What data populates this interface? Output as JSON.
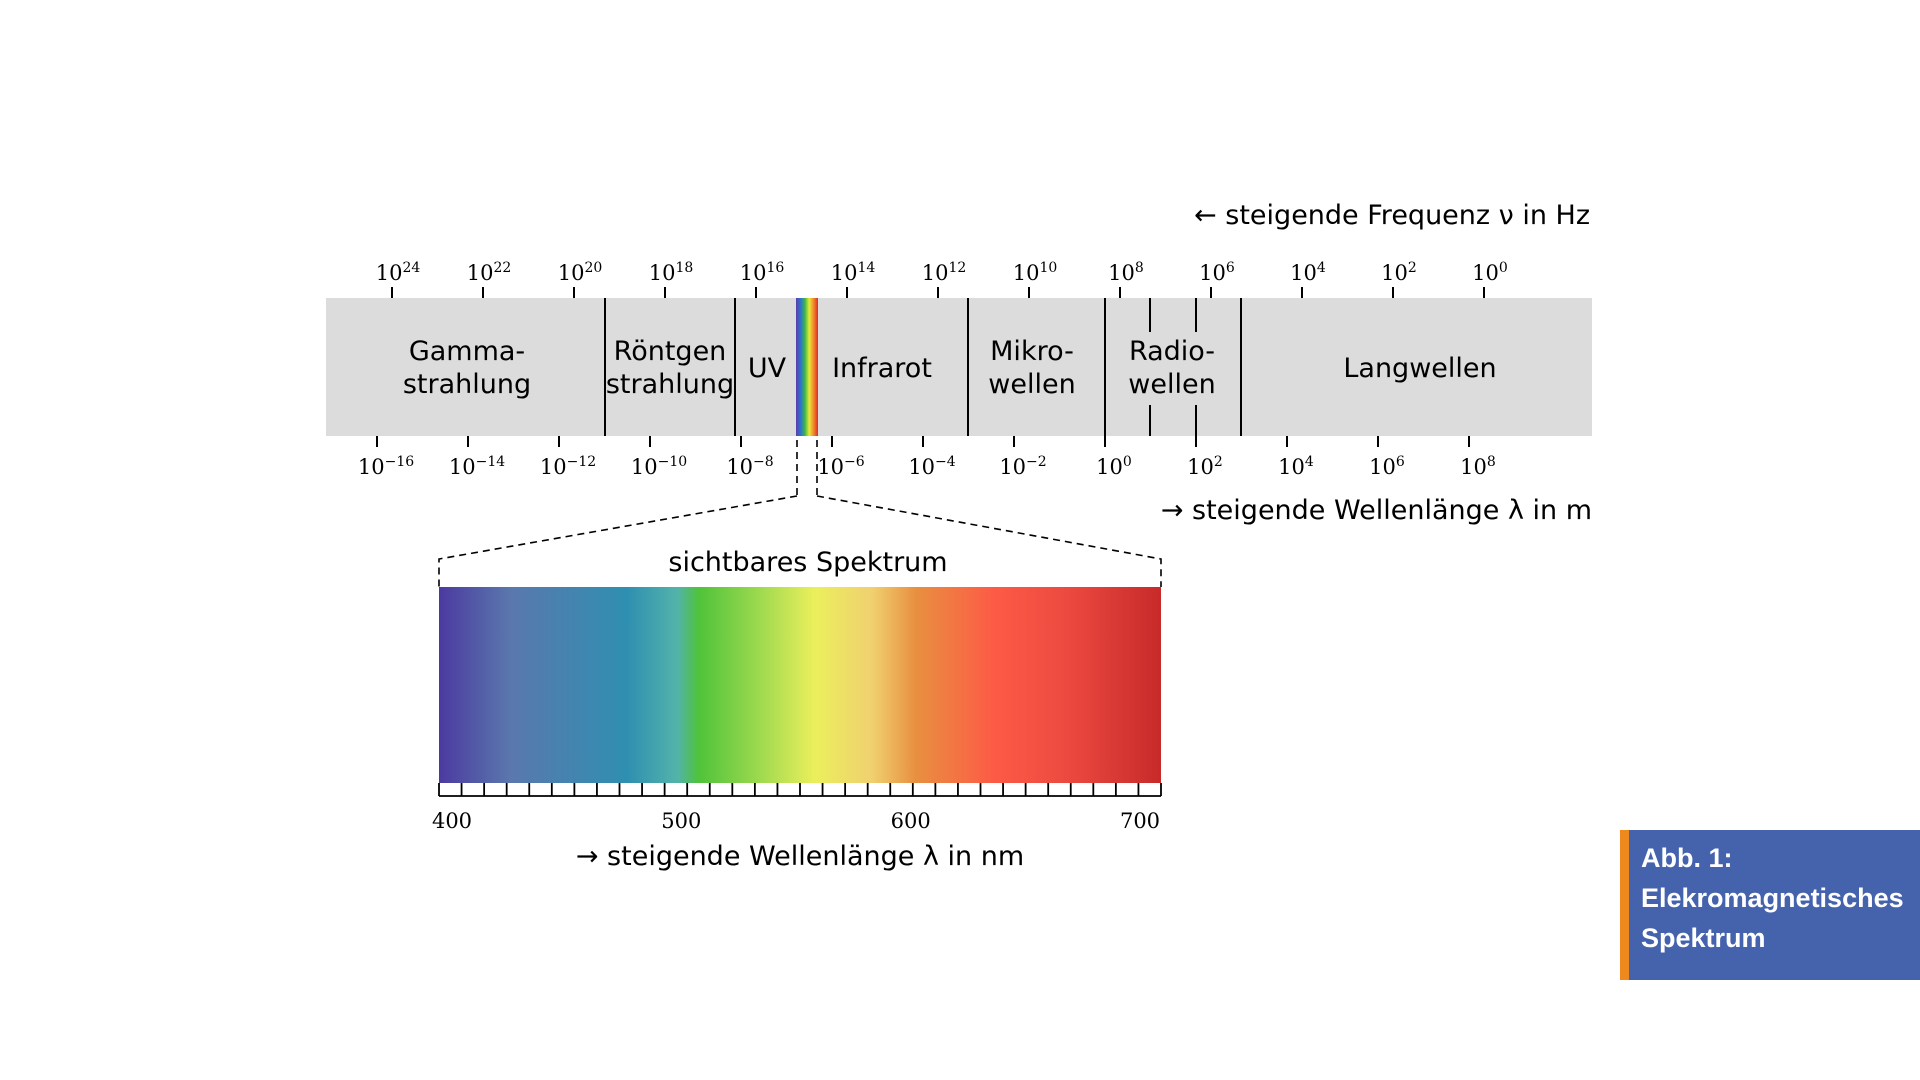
{
  "frequency_axis": {
    "label": "← steigende Frequenz ν in Hz",
    "ticks": [
      {
        "base": "10",
        "exp": "24"
      },
      {
        "base": "10",
        "exp": "22"
      },
      {
        "base": "10",
        "exp": "20"
      },
      {
        "base": "10",
        "exp": "18"
      },
      {
        "base": "10",
        "exp": "16"
      },
      {
        "base": "10",
        "exp": "14"
      },
      {
        "base": "10",
        "exp": "12"
      },
      {
        "base": "10",
        "exp": "10"
      },
      {
        "base": "10",
        "exp": "8"
      },
      {
        "base": "10",
        "exp": "6"
      },
      {
        "base": "10",
        "exp": "4"
      },
      {
        "base": "10",
        "exp": "2"
      },
      {
        "base": "10",
        "exp": "0"
      }
    ]
  },
  "wavelength_axis": {
    "label": "→ steigende Wellenlänge λ in m",
    "ticks": [
      {
        "base": "10",
        "exp": "−16"
      },
      {
        "base": "10",
        "exp": "−14"
      },
      {
        "base": "10",
        "exp": "−12"
      },
      {
        "base": "10",
        "exp": "−10"
      },
      {
        "base": "10",
        "exp": "−8"
      },
      {
        "base": "10",
        "exp": "−6"
      },
      {
        "base": "10",
        "exp": "−4"
      },
      {
        "base": "10",
        "exp": "−2"
      },
      {
        "base": "10",
        "exp": "0"
      },
      {
        "base": "10",
        "exp": "2"
      },
      {
        "base": "10",
        "exp": "4"
      },
      {
        "base": "10",
        "exp": "6"
      },
      {
        "base": "10",
        "exp": "8"
      }
    ]
  },
  "regions": [
    {
      "key": "gamma",
      "lines": [
        "Gamma-",
        "strahlung"
      ]
    },
    {
      "key": "xray",
      "lines": [
        "Röntgen",
        "strahlung"
      ]
    },
    {
      "key": "uv",
      "lines": [
        "UV"
      ]
    },
    {
      "key": "infrared",
      "lines": [
        "Infrarot"
      ]
    },
    {
      "key": "microwave",
      "lines": [
        "Mikro-",
        "wellen"
      ]
    },
    {
      "key": "radio",
      "lines": [
        "Radio-",
        "wellen"
      ]
    },
    {
      "key": "longwave",
      "lines": [
        "Langwellen"
      ]
    }
  ],
  "visible_spectrum": {
    "title": "sichtbares Spektrum",
    "axis_label": "→ steigende Wellenlänge λ in nm",
    "ticks": [
      "400",
      "500",
      "600",
      "700"
    ],
    "colors": [
      "#4b3aa0",
      "#5a78ad",
      "#2f8fb1",
      "#52b3ab",
      "#4fc33a",
      "#9ad84e",
      "#ebef5c",
      "#f0d070",
      "#e89040",
      "#fd5a46",
      "#ec4a40",
      "#c72a2a"
    ]
  },
  "band_color": "#dcdcdc",
  "caption": {
    "lines": [
      "Abb. 1:",
      "Elekromagnetisches",
      "Spektrum"
    ],
    "background": "#4563ad",
    "accent": "#ee8a1d"
  }
}
